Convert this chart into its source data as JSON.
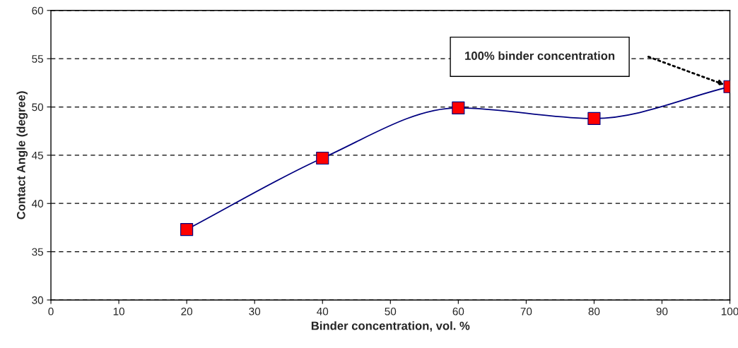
{
  "chart_data": {
    "type": "line",
    "xlabel": "Binder concentration, vol. %",
    "ylabel": "Contact Angle (degree)",
    "x": [
      20,
      40,
      60,
      80,
      100
    ],
    "series": [
      {
        "color": "#000080",
        "colors": [
          "#ff0000",
          "#ff0000",
          "#ff0000",
          "#ff0000",
          "#ff0000"
        ],
        "values": [
          37.3,
          44.7,
          49.9,
          48.8,
          52.1
        ]
      }
    ],
    "marker": "square",
    "xlim": [
      0,
      100
    ],
    "xticks": [
      0,
      10,
      20,
      30,
      40,
      50,
      60,
      70,
      80,
      90,
      100
    ],
    "ylim": [
      30,
      60
    ],
    "yticks": [
      30,
      35,
      40,
      45,
      50,
      55,
      60
    ],
    "grid": "y",
    "legend": false,
    "annotations": [
      "100% binder concentration"
    ]
  }
}
